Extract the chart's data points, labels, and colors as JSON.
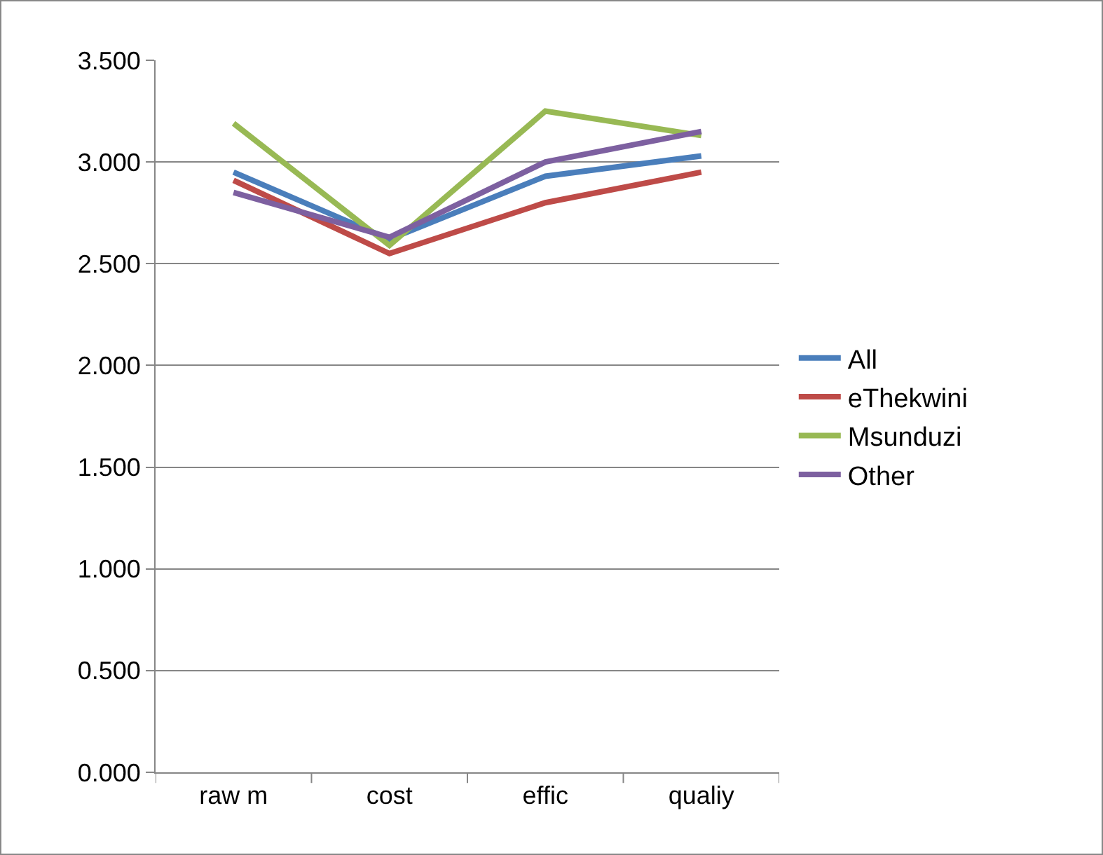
{
  "chart_data": {
    "type": "line",
    "categories": [
      "raw m",
      "cost",
      "effic",
      "qualiy"
    ],
    "series": [
      {
        "name": "All",
        "color": "#4a7ebb",
        "values": [
          2.95,
          2.62,
          2.93,
          3.03
        ]
      },
      {
        "name": "eThekwini",
        "color": "#be4b48",
        "values": [
          2.91,
          2.55,
          2.8,
          2.95
        ]
      },
      {
        "name": "Msunduzi",
        "color": "#98b954",
        "values": [
          3.19,
          2.59,
          3.25,
          3.13
        ]
      },
      {
        "name": "Other",
        "color": "#7d60a0",
        "values": [
          2.85,
          2.63,
          3.0,
          3.15
        ]
      }
    ],
    "ylim": [
      0,
      3.5
    ],
    "yticks": [
      {
        "value": 0,
        "label": "0.000"
      },
      {
        "value": 0.5,
        "label": "0.500"
      },
      {
        "value": 1,
        "label": "1.000"
      },
      {
        "value": 1.5,
        "label": "1.500"
      },
      {
        "value": 2,
        "label": "2.000"
      },
      {
        "value": 2.5,
        "label": "2.500"
      },
      {
        "value": 3,
        "label": "3.000"
      },
      {
        "value": 3.5,
        "label": "3.500"
      }
    ],
    "grid": "y",
    "legend": "right",
    "marker": "none",
    "line_style": "solid"
  }
}
